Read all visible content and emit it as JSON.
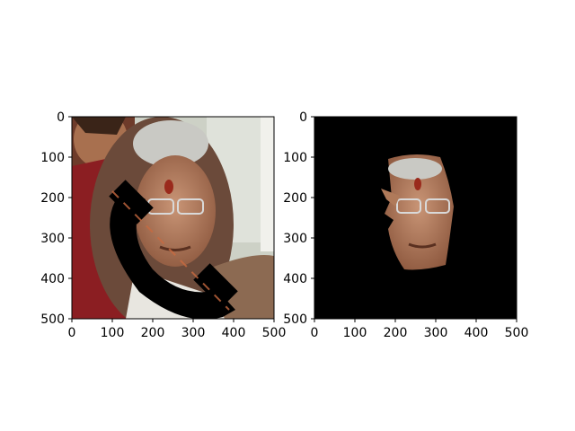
{
  "chart_data": [
    {
      "type": "image",
      "title": "",
      "xlabel": "",
      "ylabel": "",
      "xlim": [
        0,
        500
      ],
      "ylim": [
        500,
        0
      ],
      "xticks": [
        "0",
        "100",
        "200",
        "300",
        "400",
        "500"
      ],
      "yticks": [
        "0",
        "100",
        "200",
        "300",
        "400",
        "500"
      ],
      "content": "photo of two people with a black phone-shaped occlusion mask"
    },
    {
      "type": "image",
      "title": "",
      "xlabel": "",
      "ylabel": "",
      "xlim": [
        0,
        500
      ],
      "ylim": [
        500,
        0
      ],
      "xticks": [
        "0",
        "100",
        "200",
        "300",
        "400",
        "500"
      ],
      "yticks": [
        "0",
        "100",
        "200",
        "300",
        "400",
        "500"
      ],
      "content": "segmented face region on black background"
    }
  ],
  "colors": {
    "background": "#ffffff",
    "mask": "#000000",
    "skin": "#b07a5a",
    "hair": "#c9c9c4",
    "wall": "#cdd1c6",
    "sari": "#8b1e22"
  }
}
